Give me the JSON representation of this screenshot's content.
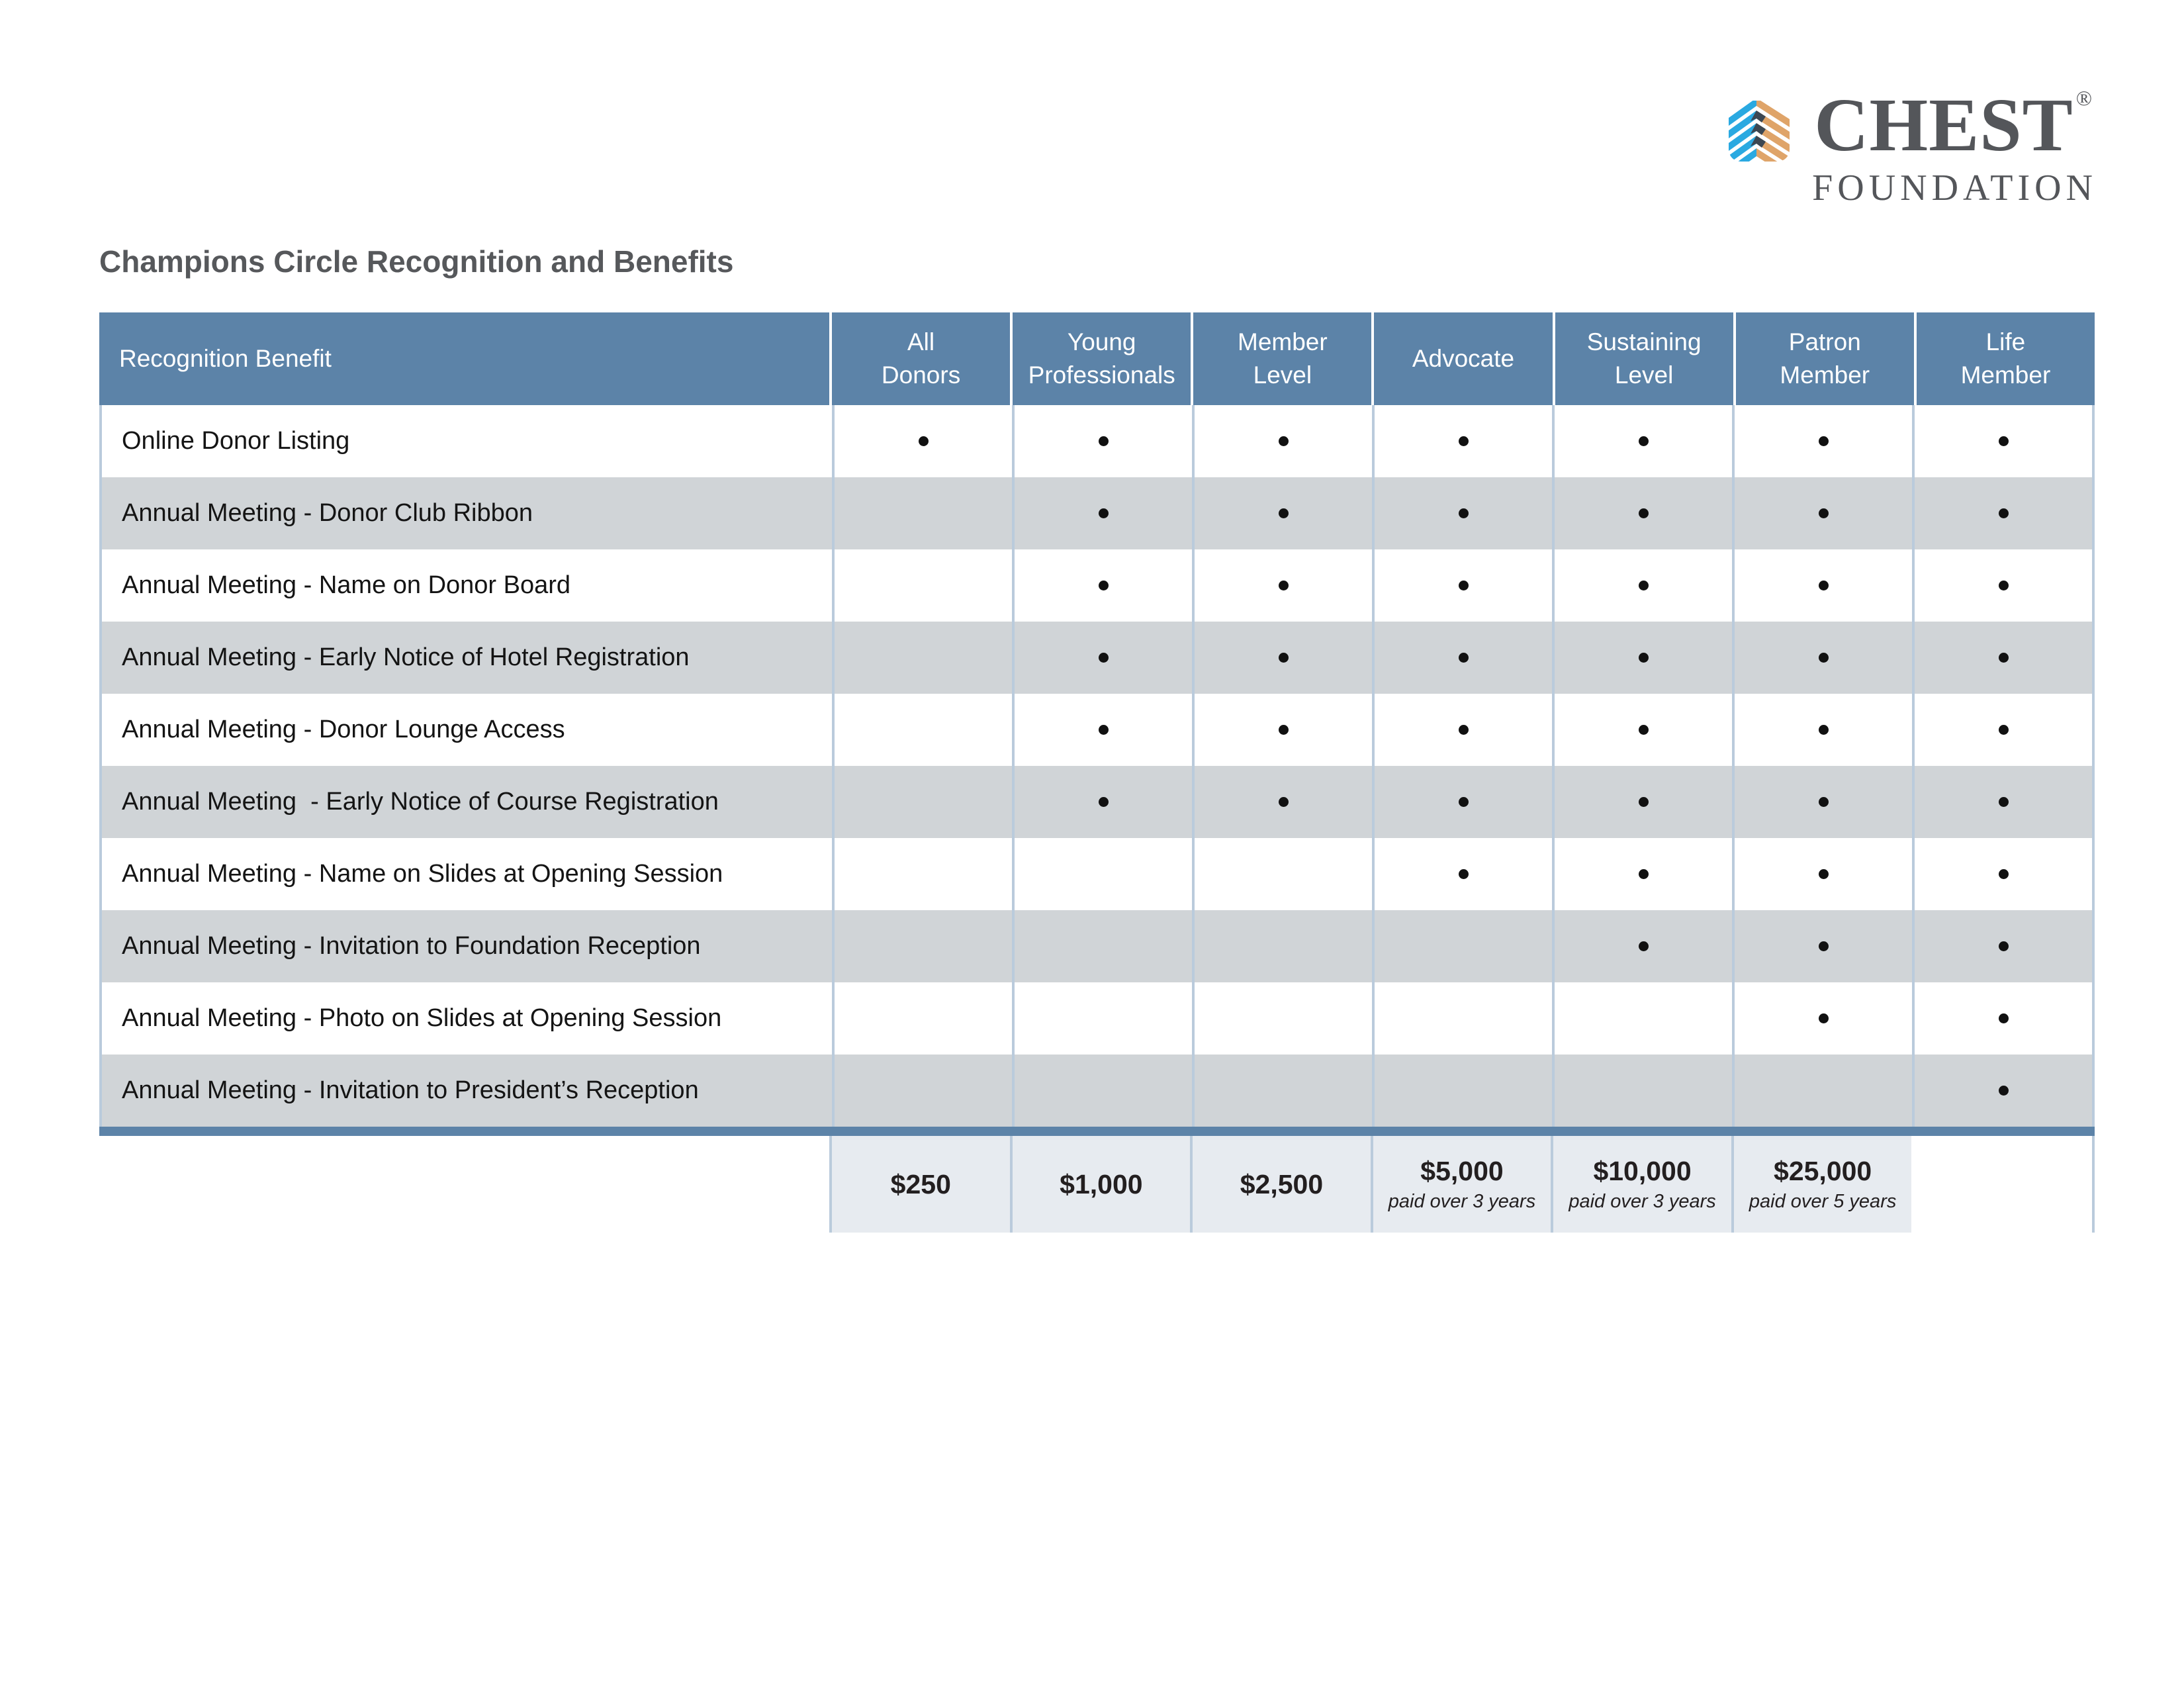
{
  "page": {
    "title": "Champions Circle Recognition and Benefits"
  },
  "logo": {
    "icon": "chest-ribcage-icon",
    "brand": "CHEST",
    "registered": "®",
    "subtitle": "FOUNDATION",
    "colors": {
      "blue": "#2AA9E1",
      "tan": "#DFA469",
      "dark": "#3C4752",
      "text": "#54565A"
    }
  },
  "table": {
    "colors": {
      "header_bg": "#5C83A8",
      "alt_row_bg": "#D0D4D7",
      "footer_bg": "#E7EBF0",
      "divider": "#BACBDC",
      "accent_bar": "#5C83A8"
    },
    "columns": [
      {
        "label": "Recognition Benefit"
      },
      {
        "label": "All\nDonors"
      },
      {
        "label": "Young\nProfessionals"
      },
      {
        "label": "Member\nLevel"
      },
      {
        "label": "Advocate"
      },
      {
        "label": "Sustaining\nLevel"
      },
      {
        "label": "Patron\nMember"
      },
      {
        "label": "Life\nMember"
      }
    ],
    "rows": [
      {
        "label": "Online Donor Listing",
        "dots": [
          1,
          1,
          1,
          1,
          1,
          1,
          1
        ]
      },
      {
        "label": "Annual Meeting - Donor Club Ribbon",
        "dots": [
          0,
          1,
          1,
          1,
          1,
          1,
          1
        ]
      },
      {
        "label": "Annual Meeting - Name on Donor Board",
        "dots": [
          0,
          1,
          1,
          1,
          1,
          1,
          1
        ]
      },
      {
        "label": "Annual Meeting - Early Notice of Hotel Registration",
        "dots": [
          0,
          1,
          1,
          1,
          1,
          1,
          1
        ]
      },
      {
        "label": "Annual Meeting - Donor Lounge Access",
        "dots": [
          0,
          1,
          1,
          1,
          1,
          1,
          1
        ]
      },
      {
        "label": "Annual Meeting  - Early Notice of Course Registration",
        "dots": [
          0,
          1,
          1,
          1,
          1,
          1,
          1
        ]
      },
      {
        "label": "Annual Meeting - Name on Slides at Opening Session",
        "dots": [
          0,
          0,
          0,
          1,
          1,
          1,
          1
        ]
      },
      {
        "label": "Annual Meeting - Invitation to Foundation Reception",
        "dots": [
          0,
          0,
          0,
          0,
          1,
          1,
          1
        ]
      },
      {
        "label": "Annual Meeting - Photo on Slides at Opening Session",
        "dots": [
          0,
          0,
          0,
          0,
          0,
          1,
          1
        ]
      },
      {
        "label": "Annual Meeting - Invitation to President’s Reception",
        "dots": [
          0,
          0,
          0,
          0,
          0,
          0,
          1
        ]
      }
    ],
    "footer": [
      {
        "price": "",
        "note": ""
      },
      {
        "price": "$250",
        "note": ""
      },
      {
        "price": "$1,000",
        "note": ""
      },
      {
        "price": "$2,500",
        "note": ""
      },
      {
        "price": "$5,000",
        "note": "paid over 3 years"
      },
      {
        "price": "$10,000",
        "note": "paid over 3 years"
      },
      {
        "price": "$25,000",
        "note": "paid over 5 years"
      }
    ]
  }
}
